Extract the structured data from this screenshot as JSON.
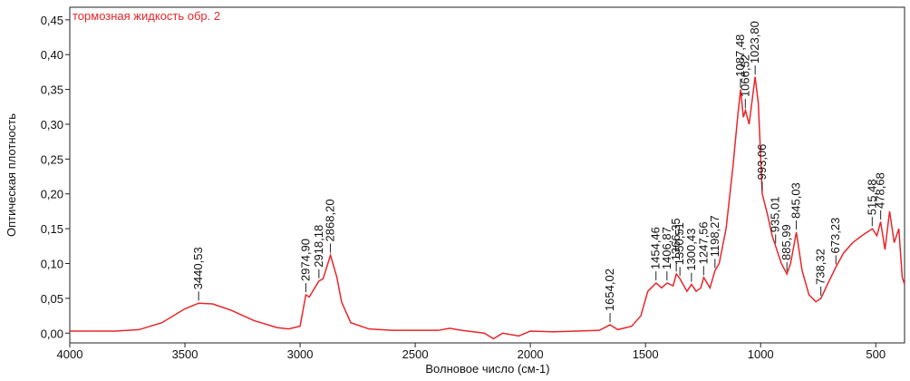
{
  "chart_data": {
    "type": "line",
    "title": "тормозная жидкость обр. 2",
    "x_label": "Волновое число (см-1)",
    "y_label": "Оптическая плотность",
    "x": [
      4000,
      3800,
      3700,
      3600,
      3500,
      3440,
      3380,
      3300,
      3200,
      3100,
      3050,
      3000,
      2975,
      2960,
      2918,
      2900,
      2868,
      2840,
      2820,
      2780,
      2700,
      2600,
      2400,
      2350,
      2300,
      2200,
      2160,
      2120,
      2050,
      2000,
      1900,
      1800,
      1700,
      1654,
      1620,
      1560,
      1520,
      1490,
      1454,
      1430,
      1406,
      1380,
      1366,
      1350,
      1320,
      1300,
      1280,
      1260,
      1247,
      1220,
      1198,
      1180,
      1150,
      1120,
      1100,
      1087,
      1075,
      1066,
      1050,
      1024,
      1010,
      993,
      970,
      950,
      935,
      910,
      886,
      870,
      845,
      820,
      790,
      760,
      738,
      710,
      673,
      640,
      600,
      560,
      515,
      495,
      479,
      460,
      440,
      420,
      400,
      385,
      375
    ],
    "series": [
      {
        "name": "тормозная жидкость обр. 2",
        "color": "#e8262a",
        "values": [
          0.003,
          0.003,
          0.005,
          0.015,
          0.035,
          0.043,
          0.042,
          0.033,
          0.018,
          0.008,
          0.006,
          0.01,
          0.055,
          0.052,
          0.075,
          0.078,
          0.112,
          0.08,
          0.045,
          0.015,
          0.006,
          0.004,
          0.004,
          0.007,
          0.004,
          0.0,
          -0.008,
          0.0,
          -0.004,
          0.003,
          0.002,
          0.003,
          0.004,
          0.012,
          0.005,
          0.01,
          0.025,
          0.06,
          0.072,
          0.065,
          0.072,
          0.068,
          0.085,
          0.078,
          0.06,
          0.07,
          0.06,
          0.065,
          0.08,
          0.065,
          0.09,
          0.1,
          0.15,
          0.24,
          0.31,
          0.35,
          0.31,
          0.32,
          0.3,
          0.368,
          0.33,
          0.2,
          0.17,
          0.14,
          0.125,
          0.1,
          0.085,
          0.1,
          0.145,
          0.09,
          0.055,
          0.045,
          0.05,
          0.07,
          0.095,
          0.115,
          0.13,
          0.14,
          0.15,
          0.14,
          0.16,
          0.12,
          0.175,
          0.13,
          0.15,
          0.08,
          0.07
        ]
      }
    ],
    "xlim": [
      4000,
      375
    ],
    "ylim": [
      -0.014,
      0.468
    ],
    "xticks": [
      4000,
      3500,
      3000,
      2500,
      2000,
      1500,
      1000,
      500
    ],
    "yticks": [
      {
        "value": 0,
        "label": "0,00"
      },
      {
        "value": 0.05,
        "label": "0,05"
      },
      {
        "value": 0.1,
        "label": "0,10"
      },
      {
        "value": 0.15,
        "label": "0,15"
      },
      {
        "value": 0.2,
        "label": "0,20"
      },
      {
        "value": 0.25,
        "label": "0,25"
      },
      {
        "value": 0.3,
        "label": "0,30"
      },
      {
        "value": 0.35,
        "label": "0,35"
      },
      {
        "value": 0.4,
        "label": "0,40"
      },
      {
        "value": 0.45,
        "label": "0,45"
      }
    ],
    "annotations": [
      {
        "value": 3440.53,
        "label": "3440,53"
      },
      {
        "value": 2974.9,
        "label": "2974,90"
      },
      {
        "value": 2918.18,
        "label": "2918,18"
      },
      {
        "value": 2868.2,
        "label": "2868,20"
      },
      {
        "value": 1654.02,
        "label": "1654,02"
      },
      {
        "value": 1454.46,
        "label": "1454,46"
      },
      {
        "value": 1406.87,
        "label": "1406,87"
      },
      {
        "value": 1366.35,
        "label": "1366,35"
      },
      {
        "value": 1350.51,
        "label": "1350,51"
      },
      {
        "value": 1300.43,
        "label": "1300,43"
      },
      {
        "value": 1247.56,
        "label": "1247,56"
      },
      {
        "value": 1198.27,
        "label": "1198,27"
      },
      {
        "value": 1087.48,
        "label": "1087,48"
      },
      {
        "value": 1066.52,
        "label": "1066,52"
      },
      {
        "value": 1023.8,
        "label": "1023,80"
      },
      {
        "value": 993.06,
        "label": "993,06"
      },
      {
        "value": 935.01,
        "label": "935,01"
      },
      {
        "value": 885.99,
        "label": "885,99"
      },
      {
        "value": 845.03,
        "label": "845,03"
      },
      {
        "value": 738.32,
        "label": "738,32"
      },
      {
        "value": 673.23,
        "label": "673,23"
      },
      {
        "value": 515.48,
        "label": "515,48"
      },
      {
        "value": 478.68,
        "label": "478,68"
      }
    ]
  }
}
